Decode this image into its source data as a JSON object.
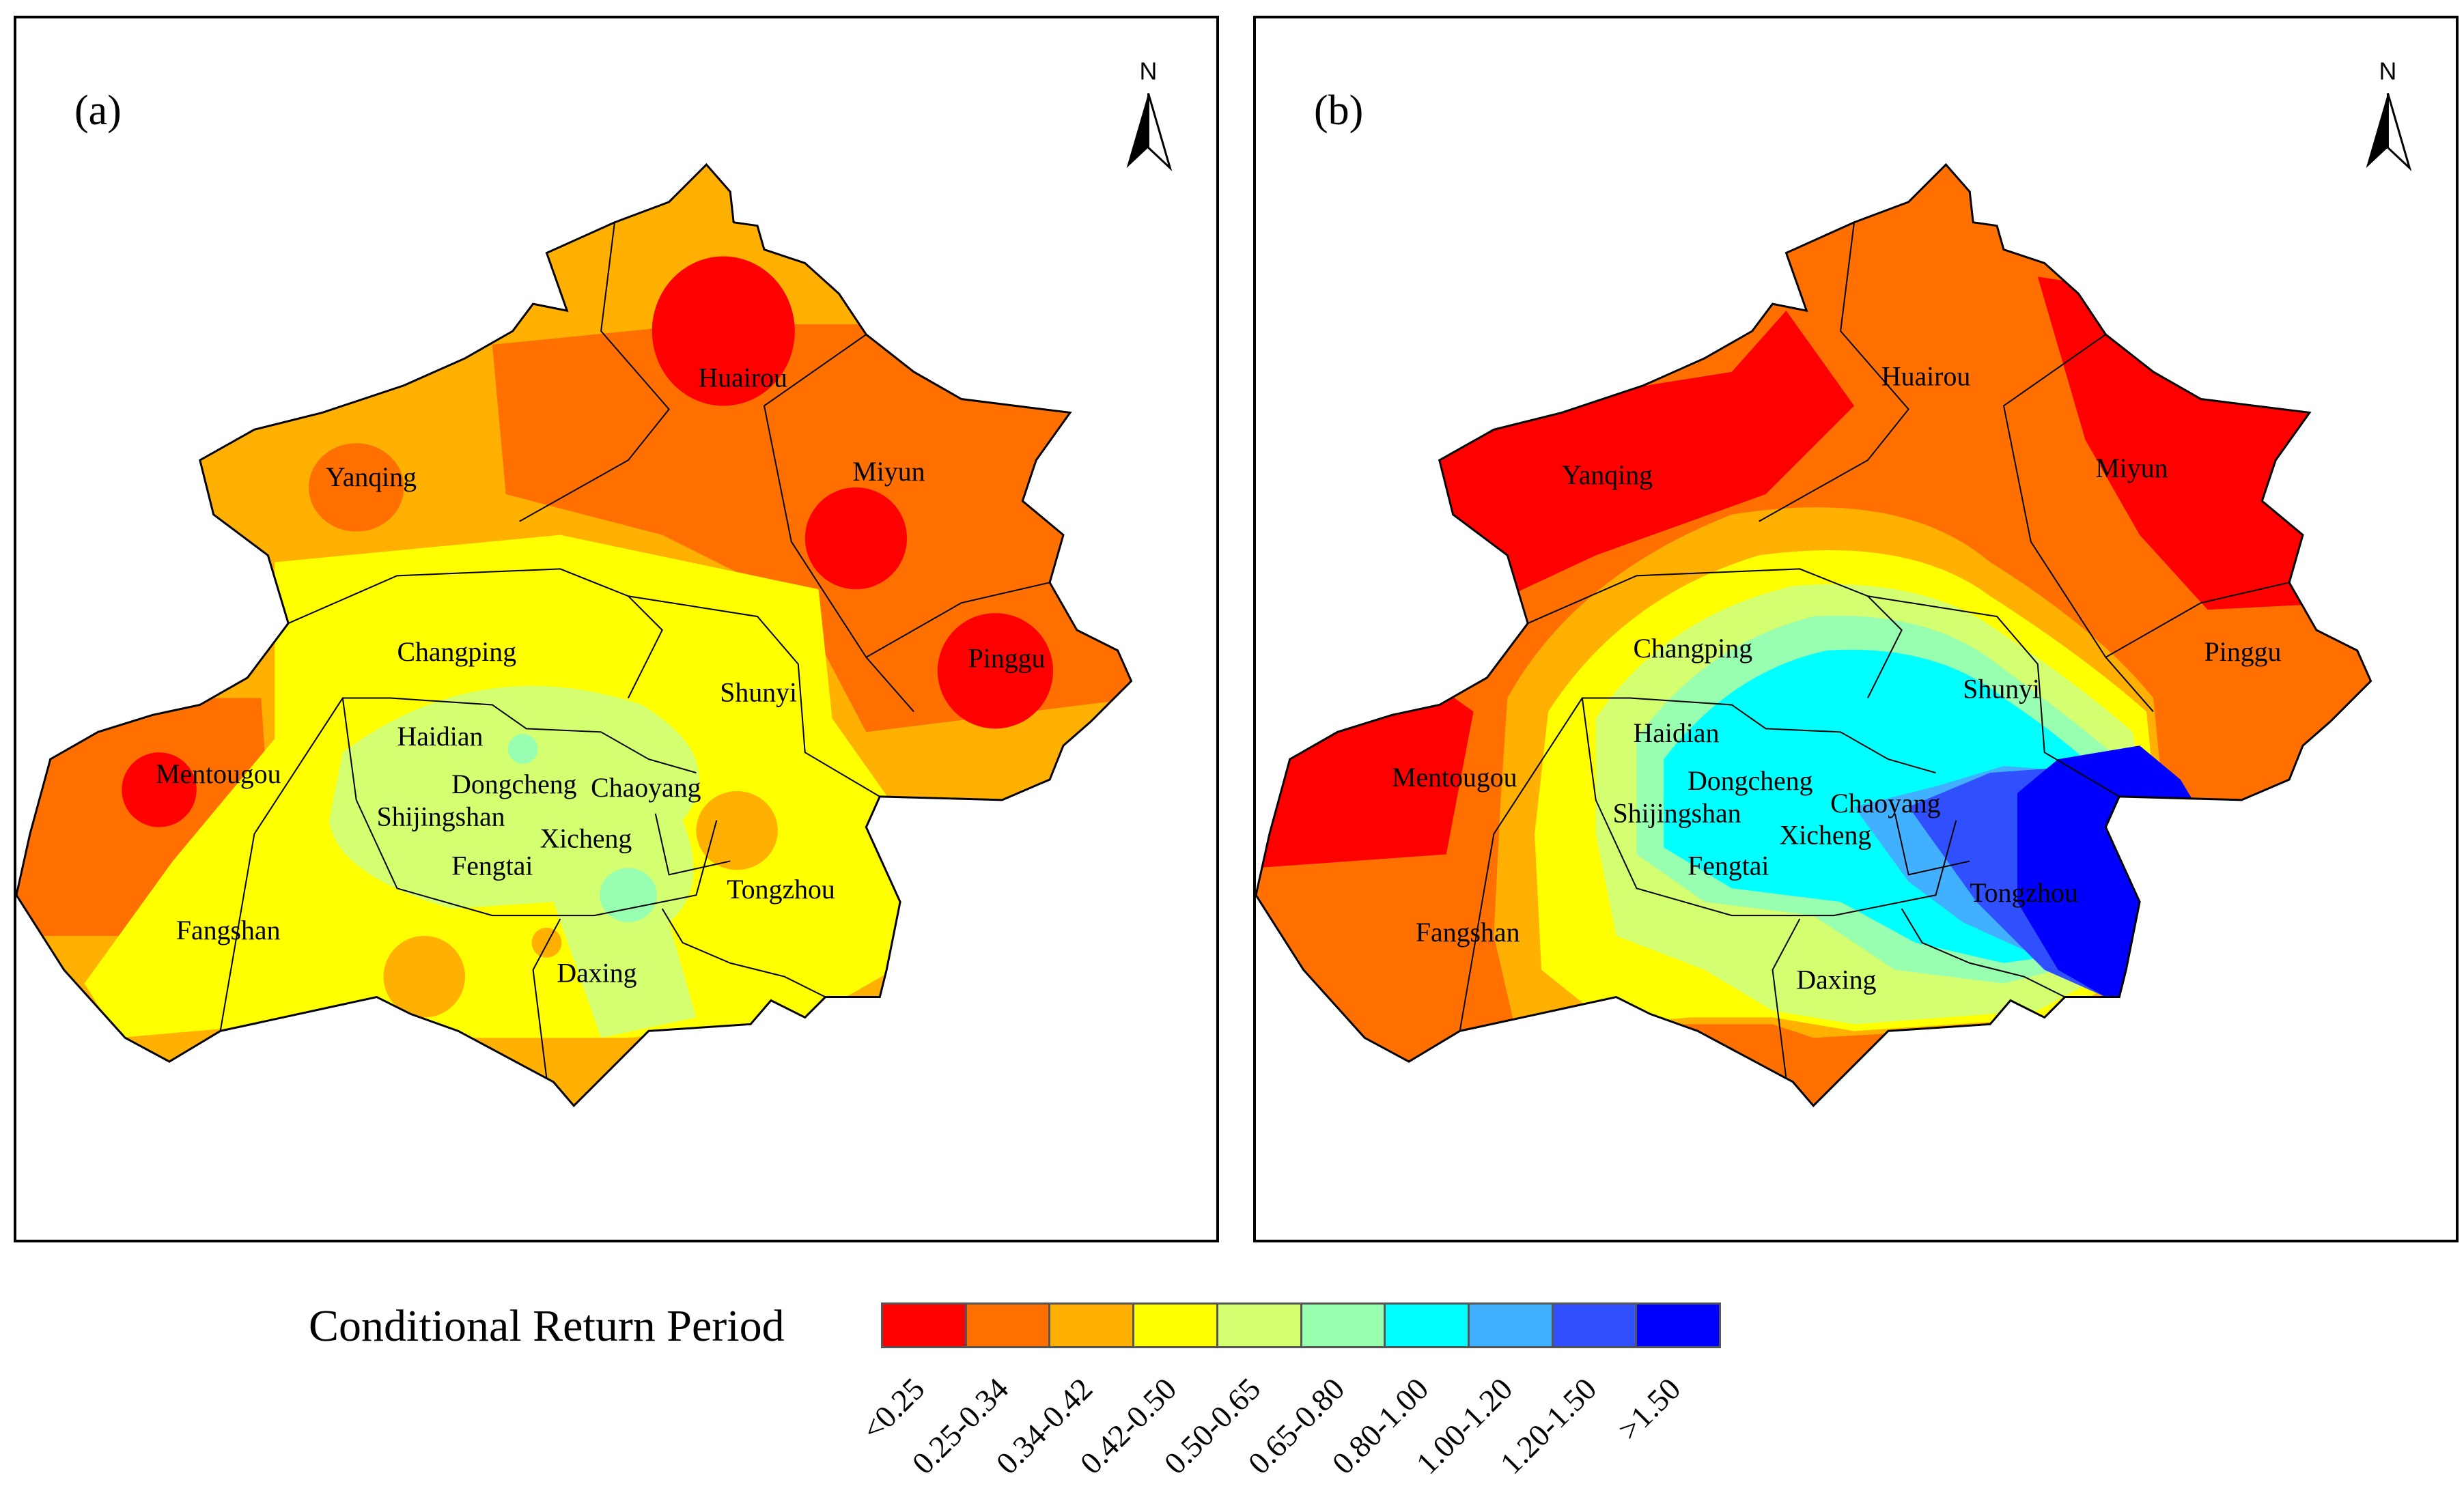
{
  "panels": [
    {
      "letter": "(a)",
      "north": "N",
      "districts": [
        "Huairou",
        "Miyun",
        "Yanqing",
        "Pinggu",
        "Changping",
        "Shunyi",
        "Haidian",
        "Mentougou",
        "Dongcheng",
        "Chaoyang",
        "Shijingshan",
        "Xicheng",
        "Fengtai",
        "Tongzhou",
        "Fangshan",
        "Daxing"
      ]
    },
    {
      "letter": "(b)",
      "north": "N",
      "districts": [
        "Huairou",
        "Miyun",
        "Yanqing",
        "Pinggu",
        "Changping",
        "Shunyi",
        "Haidian",
        "Mentougou",
        "Dongcheng",
        "Chaoyang",
        "Shijingshan",
        "Xicheng",
        "Fengtai",
        "Tongzhou",
        "Fangshan",
        "Daxing"
      ]
    }
  ],
  "legend": {
    "title": "Conditional Return Period",
    "classes": [
      {
        "label": "<0.25",
        "color": "#ff0000"
      },
      {
        "label": "0.25-0.34",
        "color": "#ff7000"
      },
      {
        "label": "0.34-0.42",
        "color": "#ffb000"
      },
      {
        "label": "0.42-0.50",
        "color": "#ffff00"
      },
      {
        "label": "0.50-0.65",
        "color": "#d4ff70"
      },
      {
        "label": "0.65-0.80",
        "color": "#98ffb0"
      },
      {
        "label": "0.80-1.00",
        "color": "#00ffff"
      },
      {
        "label": "1.00-1.20",
        "color": "#40b0ff"
      },
      {
        "label": "1.20-1.50",
        "color": "#3050ff"
      },
      {
        "label": ">1.50",
        "color": "#0000ff"
      }
    ]
  }
}
